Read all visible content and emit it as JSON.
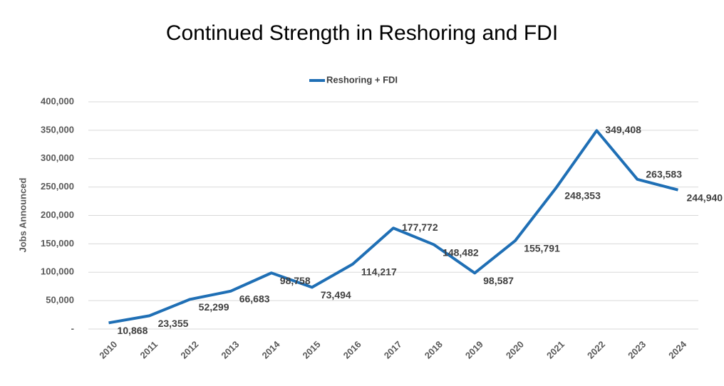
{
  "chart_data": {
    "type": "line",
    "title": "Continued Strength in Reshoring and FDI",
    "y_label": "Jobs Announced",
    "categories": [
      "2010",
      "2011",
      "2012",
      "2013",
      "2014",
      "2015",
      "2016",
      "2017",
      "2018",
      "2019",
      "2020",
      "2021",
      "2022",
      "2023",
      "2024"
    ],
    "series": [
      {
        "name": "Reshoring + FDI",
        "color": "#1f6fb5",
        "values": [
          10868,
          23355,
          52299,
          66683,
          98758,
          73494,
          114217,
          177772,
          148482,
          98587,
          155791,
          248353,
          349408,
          263583,
          244940
        ],
        "value_labels": [
          "10,868",
          "23,355",
          "52,299",
          "66,683",
          "98,758",
          "73,494",
          "114,217",
          "177,772",
          "148,482",
          "98,587",
          "155,791",
          "248,353",
          "349,408",
          "263,583",
          "244,940"
        ]
      }
    ],
    "ylim": [
      0,
      400000
    ],
    "yticks": [
      {
        "value": 0,
        "label": "-"
      },
      {
        "value": 50000,
        "label": "50,000"
      },
      {
        "value": 100000,
        "label": "100,000"
      },
      {
        "value": 150000,
        "label": "150,000"
      },
      {
        "value": 200000,
        "label": "200,000"
      },
      {
        "value": 250000,
        "label": "250,000"
      },
      {
        "value": 300000,
        "label": "300,000"
      },
      {
        "value": 350000,
        "label": "350,000"
      },
      {
        "value": 400000,
        "label": "400,000"
      }
    ],
    "grid": true
  }
}
